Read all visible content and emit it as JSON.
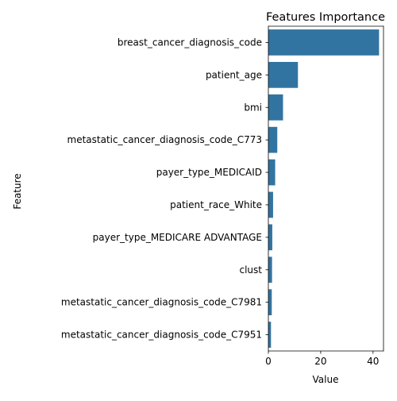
{
  "chart_data": {
    "type": "bar",
    "orientation": "horizontal",
    "title": "Features Importance",
    "xlabel": "Value",
    "ylabel": "Feature",
    "xlim": [
      0,
      44
    ],
    "xticks": [
      0,
      20,
      40
    ],
    "grid": false,
    "bar_color": "#3274a1",
    "categories": [
      "breast_cancer_diagnosis_code",
      "patient_age",
      "bmi",
      "metastatic_cancer_diagnosis_code_C773",
      "payer_type_MEDICAID",
      "patient_race_White",
      "payer_type_MEDICARE ADVANTAGE",
      "clust",
      "metastatic_cancer_diagnosis_code_C7981",
      "metastatic_cancer_diagnosis_code_C7951"
    ],
    "values": [
      42.3,
      11.3,
      5.6,
      3.4,
      2.6,
      1.8,
      1.5,
      1.4,
      1.3,
      1.0
    ]
  }
}
